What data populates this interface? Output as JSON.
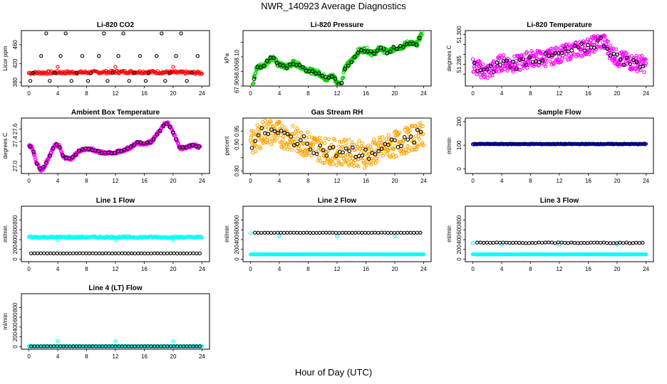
{
  "title": "NWR_140923  Average Diagnostics",
  "xlabel": "Hour of Day (UTC)",
  "chart_data": [
    {
      "type": "scatter",
      "title": "Li-820 CO2",
      "ylabel": "Licor ppm",
      "xlim": [
        0,
        24
      ],
      "ylim": [
        372,
        490
      ],
      "yticks": [
        380,
        420,
        460
      ],
      "xticks": [
        0,
        4,
        8,
        12,
        16,
        20,
        24
      ],
      "series": [
        {
          "color": "#ff0000",
          "kind": "band",
          "x": [
            0,
            4,
            8,
            12,
            16,
            20,
            24
          ],
          "y": [
            400,
            401,
            401,
            402,
            402,
            401,
            400
          ],
          "spread": 3,
          "outliers": [
            [
              4,
              413
            ],
            [
              12,
              413
            ],
            [
              20,
              413
            ]
          ]
        },
        {
          "color": "#000000",
          "kind": "levels",
          "levels": [
            383,
            400,
            436,
            484
          ],
          "cycle": 8,
          "offsets": [
            0.2,
            0.6,
            1.7,
            2.4,
            2.9,
            3.6,
            4.4,
            5.1,
            5.9,
            6.6,
            7.4
          ]
        }
      ]
    },
    {
      "type": "scatter",
      "title": "Li-820 Pressure",
      "ylabel": "kPa",
      "xlim": [
        0,
        24
      ],
      "ylim": [
        67.9,
        68.28
      ],
      "yticks": [
        67.9,
        68.0,
        68.1,
        68.2
      ],
      "yticklabels": [
        "67.90",
        "68.00",
        "68.10",
        ""
      ],
      "xticks": [
        0,
        4,
        8,
        12,
        16,
        20,
        24
      ],
      "series": [
        {
          "color": "#00cc00",
          "kind": "trace",
          "x": [
            0.3,
            0.8,
            2,
            3,
            3.8,
            5,
            6,
            7.5,
            8.5,
            9.5,
            10.5,
            11.5,
            12,
            12.6,
            13,
            14,
            15,
            16,
            17,
            18,
            19,
            20,
            21,
            22,
            23,
            23.8
          ],
          "y": [
            67.91,
            68.02,
            68.05,
            68.1,
            68.05,
            68.03,
            68.06,
            68.02,
            68.0,
            67.99,
            67.95,
            67.97,
            67.92,
            67.91,
            68.02,
            68.07,
            68.14,
            68.15,
            68.12,
            68.16,
            68.13,
            68.16,
            68.17,
            68.2,
            68.18,
            68.27
          ],
          "spread": 0.018
        },
        {
          "color": "#000000",
          "kind": "follow",
          "step": 0.45,
          "spread": 0.01
        }
      ]
    },
    {
      "type": "scatter",
      "title": "Li-820 Temperature",
      "ylabel": "degrees C",
      "xlim": [
        0,
        24
      ],
      "ylim": [
        51.274,
        51.302
      ],
      "yticks": [
        51.28,
        51.285,
        51.29,
        51.295,
        51.3
      ],
      "yticklabels": [
        "",
        "51.285",
        "",
        "",
        "51.300"
      ],
      "xticks": [
        0,
        4,
        8,
        12,
        16,
        20,
        24
      ],
      "series": [
        {
          "color": "#ff00ff",
          "kind": "trace",
          "x": [
            0,
            2,
            4,
            6,
            8,
            10,
            12,
            14,
            16,
            18,
            19,
            20,
            22,
            24
          ],
          "y": [
            51.284,
            51.281,
            51.286,
            51.285,
            51.288,
            51.288,
            51.29,
            51.292,
            51.294,
            51.297,
            51.292,
            51.288,
            51.286,
            51.285
          ],
          "spread": 0.0042
        },
        {
          "color": "#000000",
          "kind": "follow",
          "step": 0.45,
          "spread": 0.0025
        }
      ]
    },
    {
      "type": "scatter",
      "title": "Ambient Box Temperature",
      "ylabel": "degrees C",
      "xlim": [
        0,
        24
      ],
      "ylim": [
        26.88,
        27.78
      ],
      "yticks": [
        27.0,
        27.2,
        27.4,
        27.6
      ],
      "yticklabels": [
        "27.0",
        "",
        "27.4",
        "27.6"
      ],
      "xticks": [
        0,
        4,
        8,
        12,
        16,
        20,
        24
      ],
      "series": [
        {
          "color": "#ff00ff",
          "kind": "trace",
          "x": [
            0,
            0.5,
            1,
            1.7,
            2.3,
            3,
            3.6,
            4.2,
            4.8,
            5.5,
            6,
            7,
            8,
            9,
            10,
            11,
            12,
            13,
            14,
            15,
            16,
            17,
            18,
            18.8,
            19.3,
            20,
            21,
            22,
            23,
            23.8
          ],
          "y": [
            27.33,
            27.3,
            27.07,
            26.93,
            27.02,
            27.2,
            27.35,
            27.33,
            27.15,
            27.12,
            27.13,
            27.25,
            27.28,
            27.26,
            27.22,
            27.21,
            27.22,
            27.25,
            27.3,
            27.38,
            27.36,
            27.4,
            27.55,
            27.68,
            27.7,
            27.55,
            27.28,
            27.32,
            27.34,
            27.3
          ],
          "spread": 0.025
        },
        {
          "color": "#000000",
          "kind": "follow",
          "step": 0.45,
          "spread": 0.012
        }
      ]
    },
    {
      "type": "scatter",
      "title": "Gas Stream RH",
      "ylabel": "percent",
      "xlim": [
        0,
        24
      ],
      "ylim": [
        0.79,
        1.0
      ],
      "yticks": [
        0.8,
        0.85,
        0.9,
        0.95
      ],
      "yticklabels": [
        "0.80",
        "",
        "0.90",
        "0.95"
      ],
      "xticks": [
        0,
        4,
        8,
        12,
        16,
        20,
        24
      ],
      "series": [
        {
          "color": "#ffa500",
          "kind": "trace",
          "x": [
            0,
            2,
            4,
            6,
            8,
            10,
            12,
            14,
            16,
            18,
            20,
            22,
            24
          ],
          "y": [
            0.9,
            0.95,
            0.94,
            0.92,
            0.9,
            0.88,
            0.87,
            0.87,
            0.86,
            0.88,
            0.9,
            0.92,
            0.94
          ],
          "spread": 0.05
        },
        {
          "color": "#000000",
          "kind": "follow",
          "step": 0.45,
          "spread": 0.025
        }
      ]
    },
    {
      "type": "scatter",
      "title": "Sample Flow",
      "ylabel": "ml/min",
      "xlim": [
        0,
        24
      ],
      "ylim": [
        -20,
        215
      ],
      "yticks": [
        0,
        100,
        200
      ],
      "xticks": [
        0,
        4,
        8,
        12,
        16,
        20,
        24
      ],
      "series": [
        {
          "color": "#0000ff",
          "kind": "band",
          "x": [
            0,
            24
          ],
          "y": [
            105,
            105
          ],
          "spread": 1.5
        },
        {
          "color": "#000000",
          "kind": "band",
          "x": [
            0.3,
            23.8
          ],
          "y": [
            105,
            105
          ],
          "spread": 0.5,
          "step": 0.45
        }
      ]
    },
    {
      "type": "scatter",
      "title": "Line 1 Flow",
      "ylabel": "ml/min",
      "xlim": [
        0,
        24
      ],
      "ylim": [
        -50,
        1080
      ],
      "yticks": [
        0,
        200,
        400,
        600,
        800
      ],
      "xticks": [
        0,
        4,
        8,
        12,
        16,
        20,
        24
      ],
      "series": [
        {
          "color": "#00ffff",
          "kind": "band",
          "x": [
            0,
            24
          ],
          "y": [
            450,
            450
          ],
          "spread": 18,
          "dips": [
            [
              4,
              390
            ],
            [
              12,
              390
            ],
            [
              20,
              390
            ]
          ]
        },
        {
          "color": "#000000",
          "kind": "band",
          "x": [
            0.3,
            23.8
          ],
          "y": [
            120,
            120
          ],
          "spread": 2,
          "step": 0.45
        }
      ]
    },
    {
      "type": "scatter",
      "title": "Line 2 Flow",
      "ylabel": "ml/min",
      "xlim": [
        0,
        24
      ],
      "ylim": [
        -50,
        1080
      ],
      "yticks": [
        0,
        200,
        400,
        600,
        800
      ],
      "xticks": [
        0,
        4,
        8,
        12,
        16,
        20,
        24
      ],
      "series": [
        {
          "color": "#00ffff",
          "kind": "band",
          "x": [
            0,
            24
          ],
          "y": [
            100,
            100
          ],
          "spread": 3,
          "dips": [
            [
              0,
              530
            ],
            [
              4,
              470
            ],
            [
              12,
              470
            ],
            [
              20,
              470
            ]
          ]
        },
        {
          "color": "#000000",
          "kind": "band",
          "x": [
            0.6,
            23.8
          ],
          "y": [
            540,
            540
          ],
          "spread": 3,
          "step": 0.45
        }
      ]
    },
    {
      "type": "scatter",
      "title": "Line 3 Flow",
      "ylabel": "ml/min",
      "xlim": [
        0,
        24
      ],
      "ylim": [
        -50,
        1080
      ],
      "yticks": [
        0,
        200,
        400,
        600,
        800
      ],
      "xticks": [
        0,
        4,
        8,
        12,
        16,
        20,
        24
      ],
      "series": [
        {
          "color": "#00ffff",
          "kind": "band",
          "x": [
            0,
            24
          ],
          "y": [
            100,
            100
          ],
          "spread": 3,
          "dips": [
            [
              0,
              330
            ],
            [
              4,
              300
            ],
            [
              12,
              300
            ],
            [
              20,
              300
            ]
          ]
        },
        {
          "color": "#000000",
          "kind": "band",
          "x": [
            0.6,
            23.8
          ],
          "y": [
            335,
            335
          ],
          "spread": 8,
          "step": 0.45
        }
      ]
    },
    {
      "type": "scatter",
      "title": "Line 4 (LT) Flow",
      "ylabel": "ml/min",
      "xlim": [
        0,
        24
      ],
      "ylim": [
        -50,
        1080
      ],
      "yticks": [
        0,
        200,
        400,
        600,
        800
      ],
      "xticks": [
        0,
        4,
        8,
        12,
        16,
        20,
        24
      ],
      "series": [
        {
          "color": "#00ffff",
          "kind": "band",
          "x": [
            0,
            24
          ],
          "y": [
            10,
            10
          ],
          "spread": 2,
          "dips": [
            [
              4,
              110
            ],
            [
              12,
              110
            ],
            [
              20,
              110
            ]
          ]
        },
        {
          "color": "#000000",
          "kind": "band",
          "x": [
            0.3,
            23.8
          ],
          "y": [
            8,
            8
          ],
          "spread": 1,
          "step": 0.45
        }
      ]
    }
  ]
}
